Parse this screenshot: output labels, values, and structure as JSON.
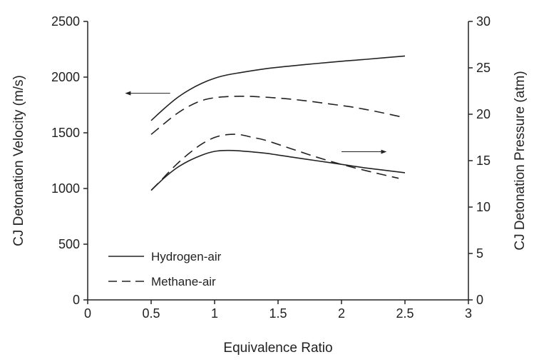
{
  "chart_data": {
    "type": "line",
    "title": "",
    "xlabel": "Equivalence Ratio",
    "ylabel_left": "CJ Detonation Velocity (m/s)",
    "ylabel_right": "CJ Detonation Pressure (atm)",
    "xlim": [
      0,
      3
    ],
    "ylim_left": [
      0,
      2500
    ],
    "ylim_right": [
      0,
      30
    ],
    "x_ticks": [
      "0",
      "0.5",
      "1",
      "1.5",
      "2",
      "2.5",
      "3"
    ],
    "y_left_ticks": [
      "0",
      "500",
      "1000",
      "1500",
      "2000",
      "2500"
    ],
    "y_right_ticks": [
      "0",
      "5",
      "10",
      "15",
      "20",
      "25",
      "30"
    ],
    "grid": false,
    "legend_position": "bottom-left",
    "legend": [
      {
        "label": "Hydrogen-air",
        "style": "solid"
      },
      {
        "label": "Methane-air",
        "style": "dashed"
      }
    ],
    "series": [
      {
        "fuel": "Hydrogen-air",
        "quantity": "velocity",
        "axis": "left",
        "style": "solid",
        "x": [
          0.5,
          0.6,
          0.7,
          0.8,
          0.9,
          1.0,
          1.1,
          1.2,
          1.4,
          1.6,
          1.8,
          2.0,
          2.2,
          2.5
        ],
        "y": [
          1610,
          1715,
          1810,
          1885,
          1945,
          1990,
          2020,
          2040,
          2075,
          2100,
          2122,
          2142,
          2160,
          2190
        ]
      },
      {
        "fuel": "Methane-air",
        "quantity": "velocity",
        "axis": "left",
        "style": "dashed",
        "x": [
          0.5,
          0.6,
          0.7,
          0.8,
          0.9,
          1.0,
          1.1,
          1.2,
          1.3,
          1.5,
          1.7,
          1.9,
          2.1,
          2.3,
          2.5
        ],
        "y": [
          1485,
          1580,
          1670,
          1740,
          1790,
          1815,
          1825,
          1828,
          1826,
          1812,
          1790,
          1760,
          1728,
          1685,
          1635
        ]
      },
      {
        "fuel": "Methane-air",
        "quantity": "pressure",
        "axis": "right",
        "style": "dashed",
        "x": [
          0.5,
          0.6,
          0.7,
          0.8,
          0.9,
          1.0,
          1.1,
          1.2,
          1.3,
          1.4,
          1.6,
          1.8,
          2.0,
          2.2,
          2.45
        ],
        "y": [
          11.8,
          13.2,
          14.6,
          15.8,
          16.8,
          17.5,
          17.8,
          17.8,
          17.5,
          17.2,
          16.3,
          15.4,
          14.6,
          13.9,
          13.1
        ]
      },
      {
        "fuel": "Hydrogen-air",
        "quantity": "pressure",
        "axis": "right",
        "style": "solid",
        "x": [
          0.5,
          0.6,
          0.7,
          0.8,
          0.9,
          1.0,
          1.1,
          1.2,
          1.4,
          1.6,
          1.8,
          2.0,
          2.2,
          2.5
        ],
        "y": [
          11.8,
          13.1,
          14.2,
          15.0,
          15.6,
          16.0,
          16.1,
          16.05,
          15.8,
          15.4,
          15.0,
          14.6,
          14.2,
          13.7
        ]
      }
    ],
    "annotations": [
      {
        "type": "arrow",
        "direction": "left",
        "points_to": "left axis",
        "x_from": 0.65,
        "x_to": 0.3,
        "y_left": 1855
      },
      {
        "type": "arrow",
        "direction": "right",
        "points_to": "right axis",
        "x_from": 2.0,
        "x_to": 2.35,
        "y_left": 1330
      }
    ]
  }
}
